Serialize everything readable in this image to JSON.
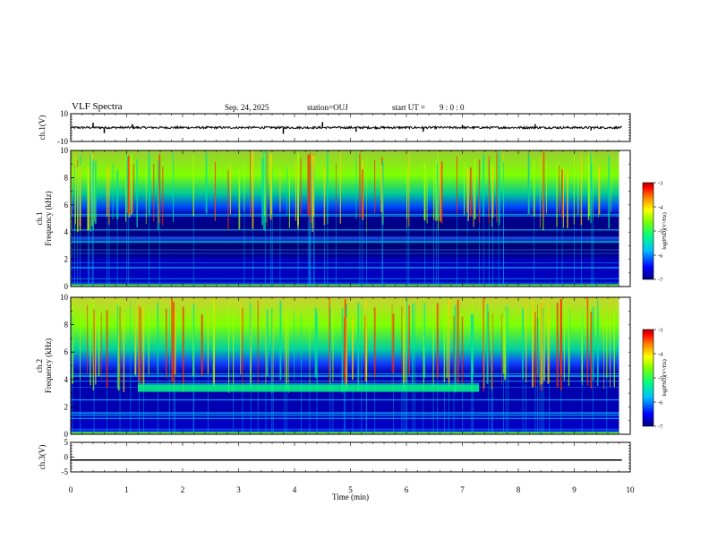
{
  "header": {
    "title": "VLF Spectra",
    "date": "Sep. 24, 2025",
    "station": "station=OUJ",
    "start_label": "start  UT =",
    "start_time": "9 : 0 : 0"
  },
  "colors": {
    "axes": "#000000",
    "background": "#ffffff",
    "colormap": [
      "#00007f",
      "#0000ff",
      "#00bfff",
      "#00ff7f",
      "#7fff00",
      "#ffff00",
      "#ff7f00",
      "#ff0000",
      "#b00000"
    ]
  },
  "chart_data": [
    {
      "type": "line",
      "name": "ch1-waveform",
      "ylabel": "ch.1(V)",
      "ylim": [
        -10,
        10
      ],
      "ytick_labels": [
        "10",
        "-10"
      ],
      "xlim": [
        0,
        10
      ],
      "baseline_v": 0,
      "spikes": [
        {
          "t": 0.4,
          "v": 3.5
        },
        {
          "t": 0.6,
          "v": -4.0
        },
        {
          "t": 1.1,
          "v": 2.5
        },
        {
          "t": 3.8,
          "v": -4.5
        },
        {
          "t": 4.5,
          "v": 4.0
        },
        {
          "t": 5.1,
          "v": -3.0
        },
        {
          "t": 6.3,
          "v": -3.0
        },
        {
          "t": 7.0,
          "v": 2.0
        },
        {
          "t": 8.3,
          "v": 2.5
        },
        {
          "t": 9.3,
          "v": -2.0
        }
      ]
    },
    {
      "type": "heatmap",
      "name": "ch1-spectrogram",
      "ylabel": "ch.1  Frequency (kHz)",
      "ylim": [
        0,
        10
      ],
      "ytick_labels": [
        "0",
        "2",
        "4",
        "6",
        "8",
        "10"
      ],
      "xlim": [
        0,
        9.8
      ],
      "dark_band_khz": [
        0.2,
        5.5
      ],
      "colorbar": {
        "label": "log(PSD)(V²/Hz)",
        "range": [
          -7,
          -3
        ],
        "tick_labels": [
          "-3",
          "-4",
          "-5",
          "-6",
          "-7"
        ]
      }
    },
    {
      "type": "heatmap",
      "name": "ch2-spectrogram",
      "ylabel": "ch.2  Frequency (kHz)",
      "ylim": [
        0,
        10
      ],
      "ytick_labels": [
        "0",
        "2",
        "4",
        "6",
        "8",
        "10"
      ],
      "xlim": [
        0,
        9.8
      ],
      "dark_band_khz": [
        0.2,
        4.5
      ],
      "emission_band": {
        "t_start_min": 1.2,
        "t_end_min": 7.3,
        "f_low_khz": 3.1,
        "f_high_khz": 3.6
      },
      "colorbar": {
        "label": "log(PSD)(V²/Hz)",
        "range": [
          -7,
          -3
        ],
        "tick_labels": [
          "-3",
          "-4",
          "-5",
          "-6",
          "-7"
        ]
      }
    },
    {
      "type": "line",
      "name": "ch3-waveform",
      "ylabel": "ch.3(V)",
      "ylim": [
        -5,
        5
      ],
      "ytick_labels": [
        "5",
        "0",
        "-5"
      ],
      "xlim": [
        0,
        10
      ],
      "constant_v": -1
    }
  ],
  "xaxis": {
    "label": "Time  (min)",
    "range": [
      0,
      10
    ],
    "tick_labels": [
      "0",
      "1",
      "2",
      "3",
      "4",
      "5",
      "6",
      "7",
      "8",
      "9",
      "10"
    ]
  }
}
